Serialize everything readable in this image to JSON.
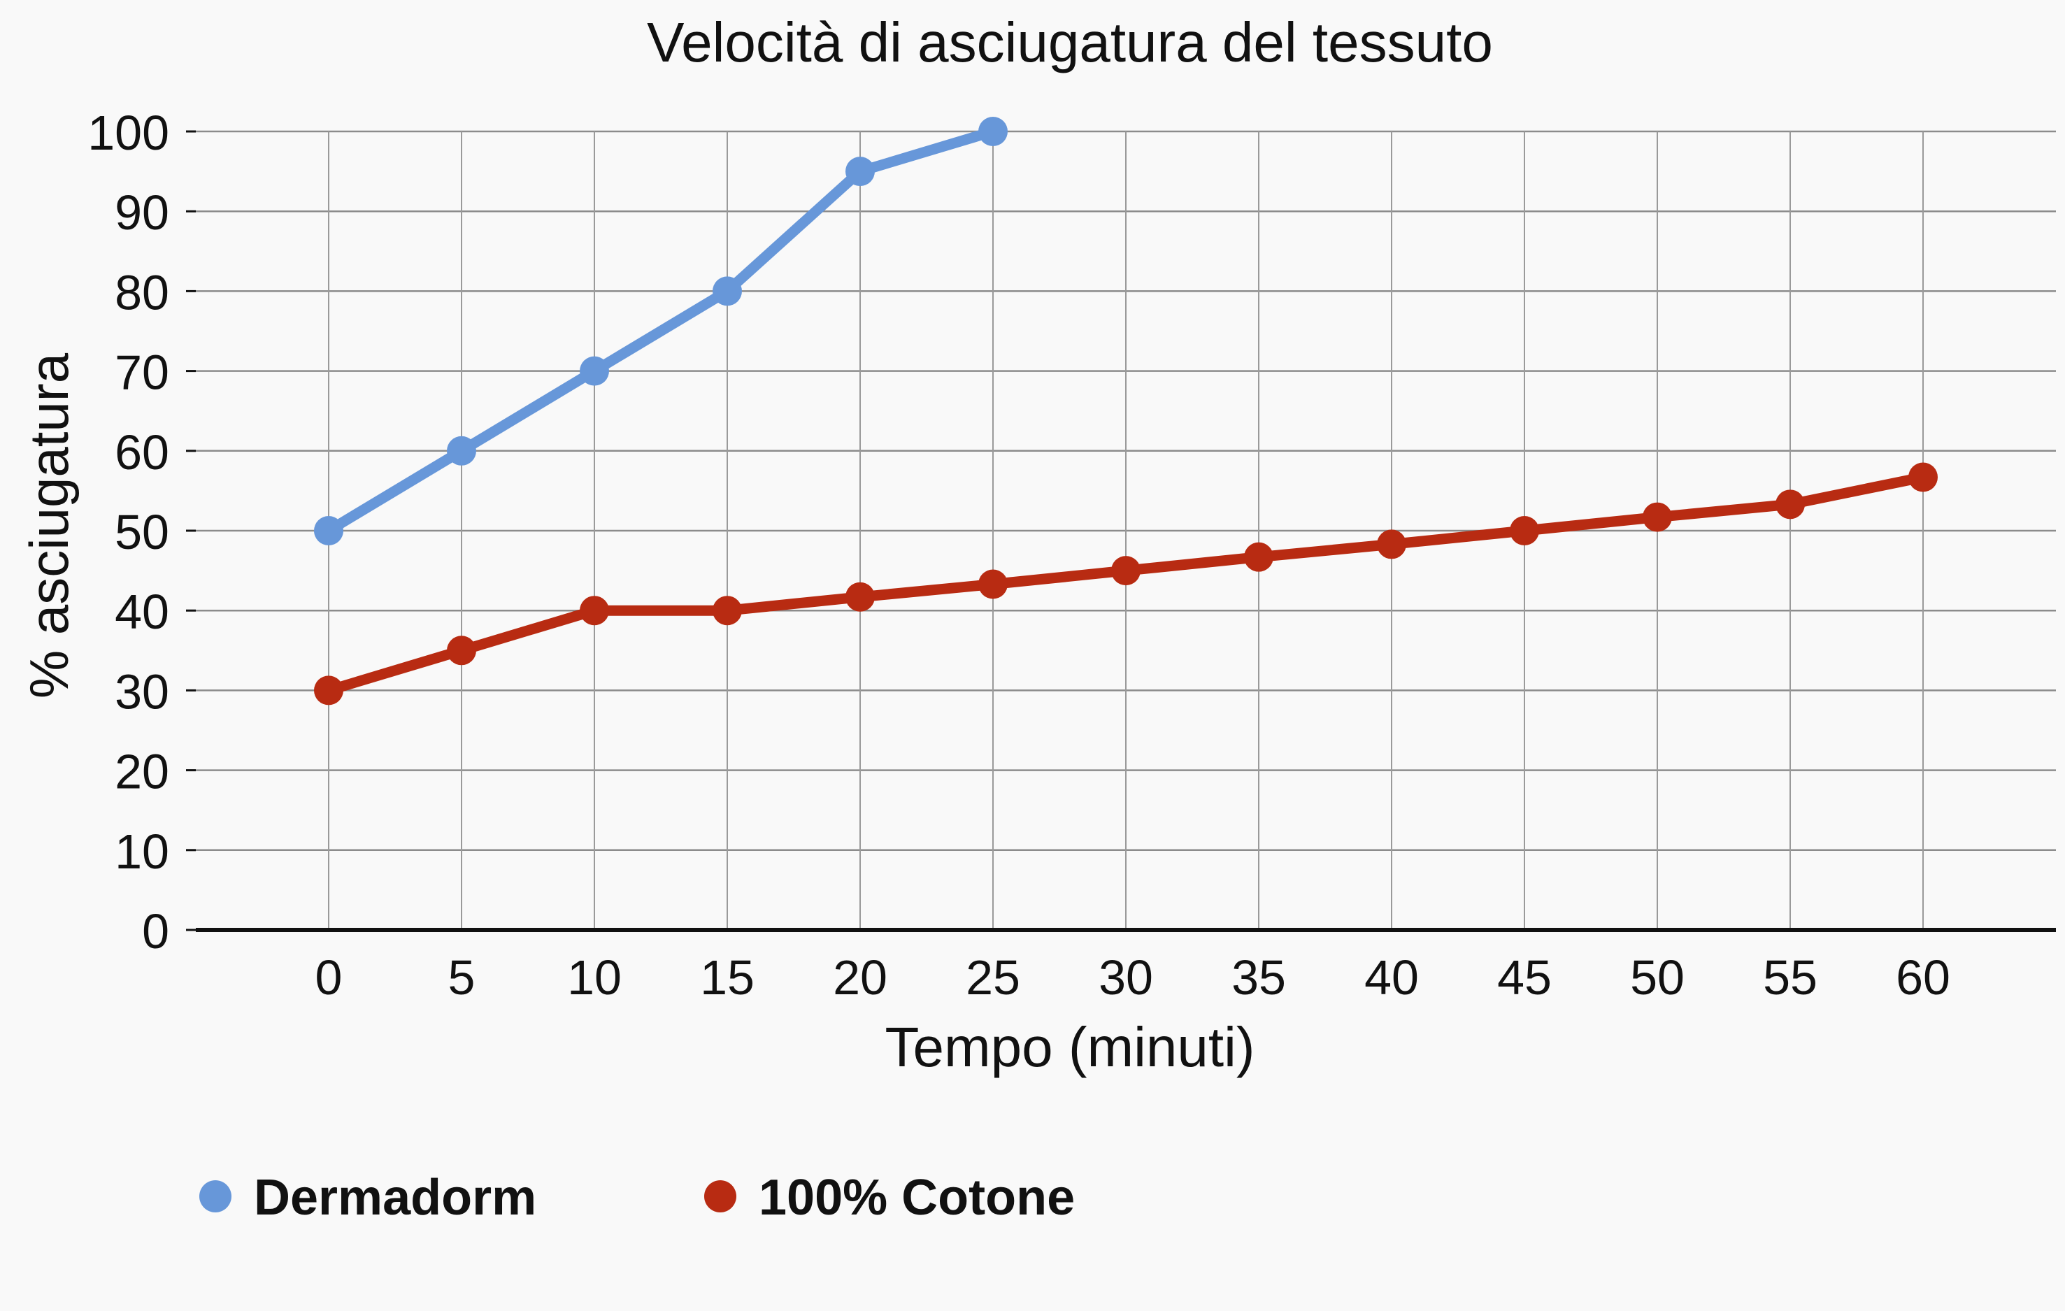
{
  "chart_data": {
    "type": "line",
    "title": "Velocità di asciugatura del tessuto",
    "xlabel": "Tempo (minuti)",
    "ylabel": "% asciugatura",
    "x": [
      0,
      5,
      10,
      15,
      20,
      25,
      30,
      35,
      40,
      45,
      50,
      55,
      60
    ],
    "x_tick_labels": [
      "0",
      "5",
      "10",
      "15",
      "20",
      "25",
      "30",
      "35",
      "40",
      "45",
      "50",
      "55",
      "60"
    ],
    "y_tick_labels": [
      "0",
      "10",
      "20",
      "30",
      "40",
      "50",
      "60",
      "70",
      "80",
      "90",
      "100"
    ],
    "xlim": [
      -5,
      65
    ],
    "ylim": [
      0,
      100
    ],
    "grid": true,
    "legend_position": "bottom-left",
    "series": [
      {
        "name": "Dermadorm",
        "color": "#6797d9",
        "x": [
          0,
          5,
          10,
          15,
          20,
          25
        ],
        "values": [
          50,
          60,
          70,
          80,
          95,
          100
        ]
      },
      {
        "name": "100% Cotone",
        "color": "#b82b12",
        "x": [
          0,
          5,
          10,
          15,
          20,
          25,
          30,
          35,
          40,
          45,
          50,
          55,
          60
        ],
        "values": [
          30,
          35,
          40,
          40,
          41.7,
          43.3,
          45,
          46.7,
          48.3,
          50,
          51.7,
          53.3,
          56.7
        ]
      }
    ]
  }
}
